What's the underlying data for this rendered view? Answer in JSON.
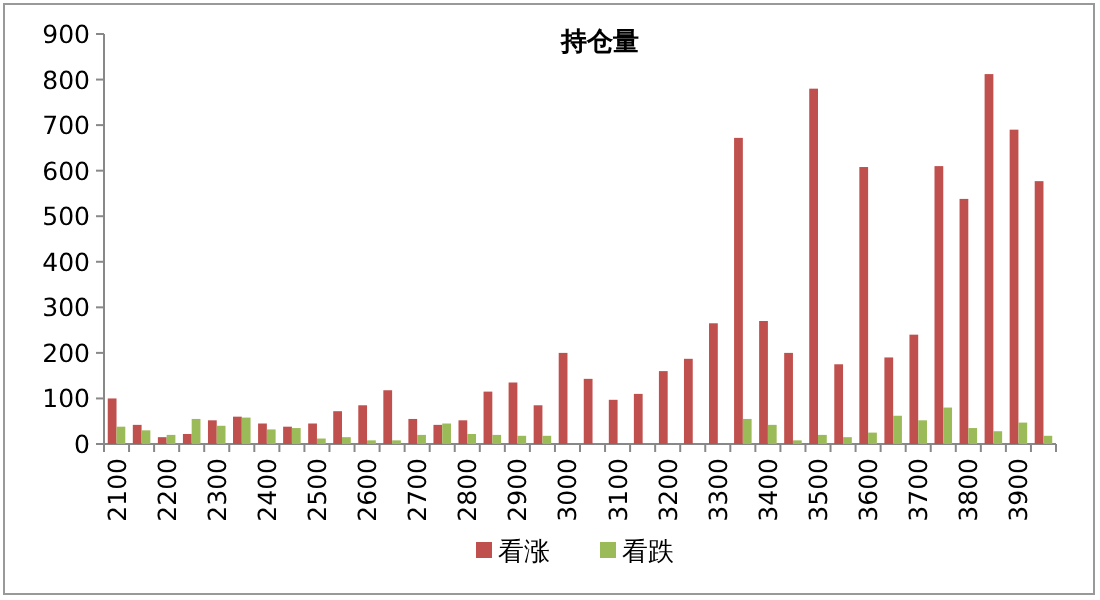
{
  "chart_data": {
    "type": "bar",
    "title": "持仓量",
    "categories": [
      "2100",
      null,
      "2200",
      null,
      "2300",
      null,
      "2400",
      null,
      "2500",
      null,
      "2600",
      null,
      "2700",
      null,
      "2800",
      null,
      "2900",
      null,
      "3000",
      null,
      "3100",
      null,
      "3200",
      null,
      "3300",
      null,
      "3400",
      null,
      "3500",
      null,
      "3600",
      null,
      "3700",
      null,
      "3800",
      null,
      "3900",
      null
    ],
    "series": [
      {
        "name": "看涨",
        "color": "#c0504d",
        "values": [
          100,
          42,
          15,
          22,
          52,
          60,
          45,
          38,
          45,
          72,
          85,
          118,
          55,
          42,
          52,
          115,
          135,
          85,
          200,
          143,
          97,
          110,
          160,
          187,
          265,
          672,
          270,
          200,
          780,
          175,
          608,
          190,
          240,
          610,
          538,
          812,
          690,
          577
        ]
      },
      {
        "name": "看跌",
        "color": "#9bbb59",
        "values": [
          38,
          30,
          20,
          55,
          40,
          58,
          32,
          35,
          12,
          15,
          8,
          8,
          20,
          45,
          22,
          20,
          18,
          18,
          null,
          null,
          null,
          null,
          null,
          null,
          null,
          55,
          42,
          8,
          20,
          15,
          25,
          62,
          52,
          80,
          35,
          28,
          47,
          18
        ]
      }
    ],
    "ylim": [
      0,
      900
    ],
    "yticks": [
      0,
      100,
      200,
      300,
      400,
      500,
      600,
      700,
      800,
      900
    ],
    "legend": "bottom"
  }
}
